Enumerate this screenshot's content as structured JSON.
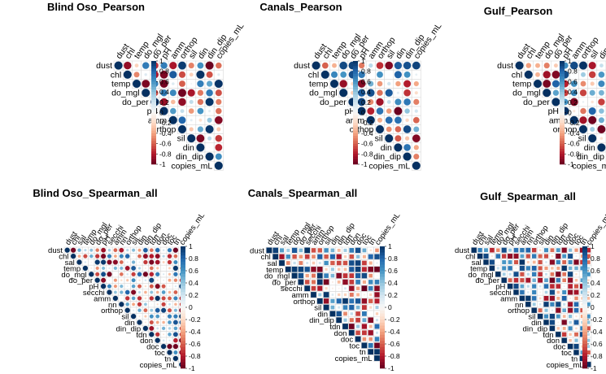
{
  "colorbar": {
    "ticks": [
      "1",
      "0.8",
      "0.6",
      "0.4",
      "0.2",
      "0",
      "-0.2",
      "-0.4",
      "-0.6",
      "-0.8",
      "-1"
    ],
    "colors": [
      "#053061",
      "#2166ac",
      "#4393c3",
      "#92c5de",
      "#d1e5f0",
      "#f7f7f7",
      "#fddbc7",
      "#f4a582",
      "#d6604d",
      "#b2182b",
      "#67001f"
    ]
  },
  "chart_data": [
    {
      "type": "heatmap",
      "title": "Blind Oso_Pearson",
      "variables": [
        "dust",
        "chl",
        "temp",
        "do_mgl",
        "do_per",
        "pH",
        "amm",
        "orthop",
        "sil",
        "din",
        "din_dip",
        "copies_mL"
      ],
      "marker": "circle",
      "layout": "upper-triangle"
    },
    {
      "type": "heatmap",
      "title": "Canals_Pearson",
      "variables": [
        "dust",
        "chl",
        "temp",
        "do_mgl",
        "do_per",
        "pH",
        "amm",
        "orthop",
        "sil",
        "din",
        "din_dip",
        "copies_mL"
      ],
      "marker": "circle",
      "layout": "upper-triangle"
    },
    {
      "type": "heatmap",
      "title": "Gulf_Pearson",
      "variables": [
        "dust",
        "chl",
        "temp",
        "do_mgl",
        "do_per",
        "pH",
        "amm",
        "orthop",
        "sil",
        "din",
        "din_dip",
        "copies_mL"
      ],
      "marker": "circle",
      "layout": "upper-triangle"
    },
    {
      "type": "heatmap",
      "title": "Blind Oso_Spearman_all",
      "variables": [
        "dust",
        "chl",
        "sal",
        "temp",
        "do_mgl",
        "do_per",
        "pH",
        "secchi",
        "amm",
        "nn",
        "orthop",
        "sil",
        "din",
        "din_dip",
        "tdn",
        "don",
        "doc",
        "toc",
        "tn",
        "copies_mL"
      ],
      "marker": "circle",
      "layout": "upper-triangle"
    },
    {
      "type": "heatmap",
      "title": "Canals_Spearman_all",
      "variables": [
        "dust",
        "chl",
        "sal",
        "temp",
        "do_mgl",
        "do_per",
        "secchi",
        "amm",
        "orthop",
        "sil",
        "din",
        "din_dip",
        "tdn",
        "don",
        "doc",
        "toc",
        "tn",
        "copies_mL"
      ],
      "marker": "square",
      "layout": "upper-triangle"
    },
    {
      "type": "heatmap",
      "title": "Gulf_Spearman_all",
      "variables": [
        "dust",
        "chl",
        "sal",
        "temp",
        "do_mgl",
        "do_per",
        "pH",
        "secchi",
        "amm",
        "nn",
        "orthop",
        "sil",
        "din",
        "din_dip",
        "tdn",
        "don",
        "doc",
        "toc",
        "tn",
        "copies_mL"
      ],
      "marker": "square",
      "layout": "upper-triangle"
    }
  ]
}
